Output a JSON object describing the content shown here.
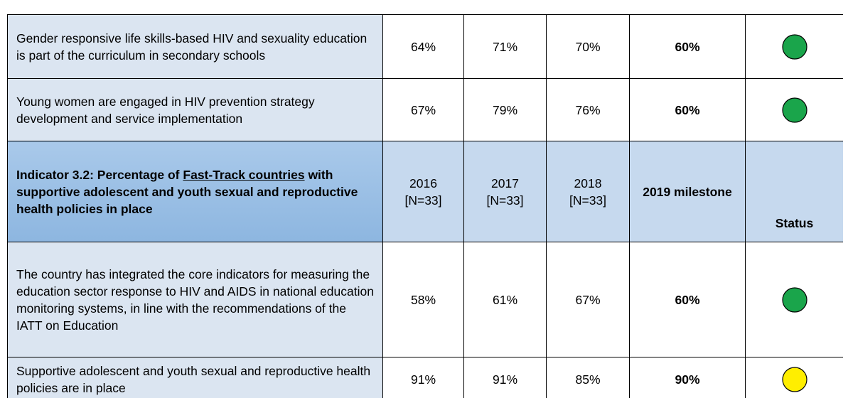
{
  "table": {
    "rows_top": [
      {
        "indicator": "Gender responsive life skills-based HIV and sexuality education is part of the curriculum in secondary schools",
        "values": [
          "64%",
          "71%",
          "70%"
        ],
        "milestone": "60%",
        "status_color": "#1aa54b"
      },
      {
        "indicator": "Young women are engaged in HIV prevention strategy development and service implementation",
        "values": [
          "67%",
          "79%",
          "76%"
        ],
        "milestone": "60%",
        "status_color": "#1aa54b"
      }
    ],
    "indicator_header": {
      "title_start": "Indicator 3.2: Percentage of",
      "title_link": "Fast-Track countries",
      "title_end": "with supportive adolescent and youth sexual and reproductive health policies in place",
      "years": [
        {
          "year": "2016",
          "n": "[N=33]"
        },
        {
          "year": "2017",
          "n": "[N=33]"
        },
        {
          "year": "2018",
          "n": "[N=33]"
        }
      ],
      "milestone": "2019 milestone",
      "status": "Status"
    },
    "rows": [
      {
        "indicator": "The country has integrated the core indicators for measuring the education sector response to HIV and AIDS in national education monitoring systems, in line with the recommendations of the IATT on Education",
        "values": [
          "58%",
          "61%",
          "67%"
        ],
        "milestone": "60%",
        "status_color": "#1aa54b"
      },
      {
        "indicator": "Supportive adolescent and youth sexual and reproductive health policies are in place",
        "values": [
          "91%",
          "91%",
          "85%"
        ],
        "milestone": "90%",
        "status_color": "#ffee00"
      }
    ]
  }
}
